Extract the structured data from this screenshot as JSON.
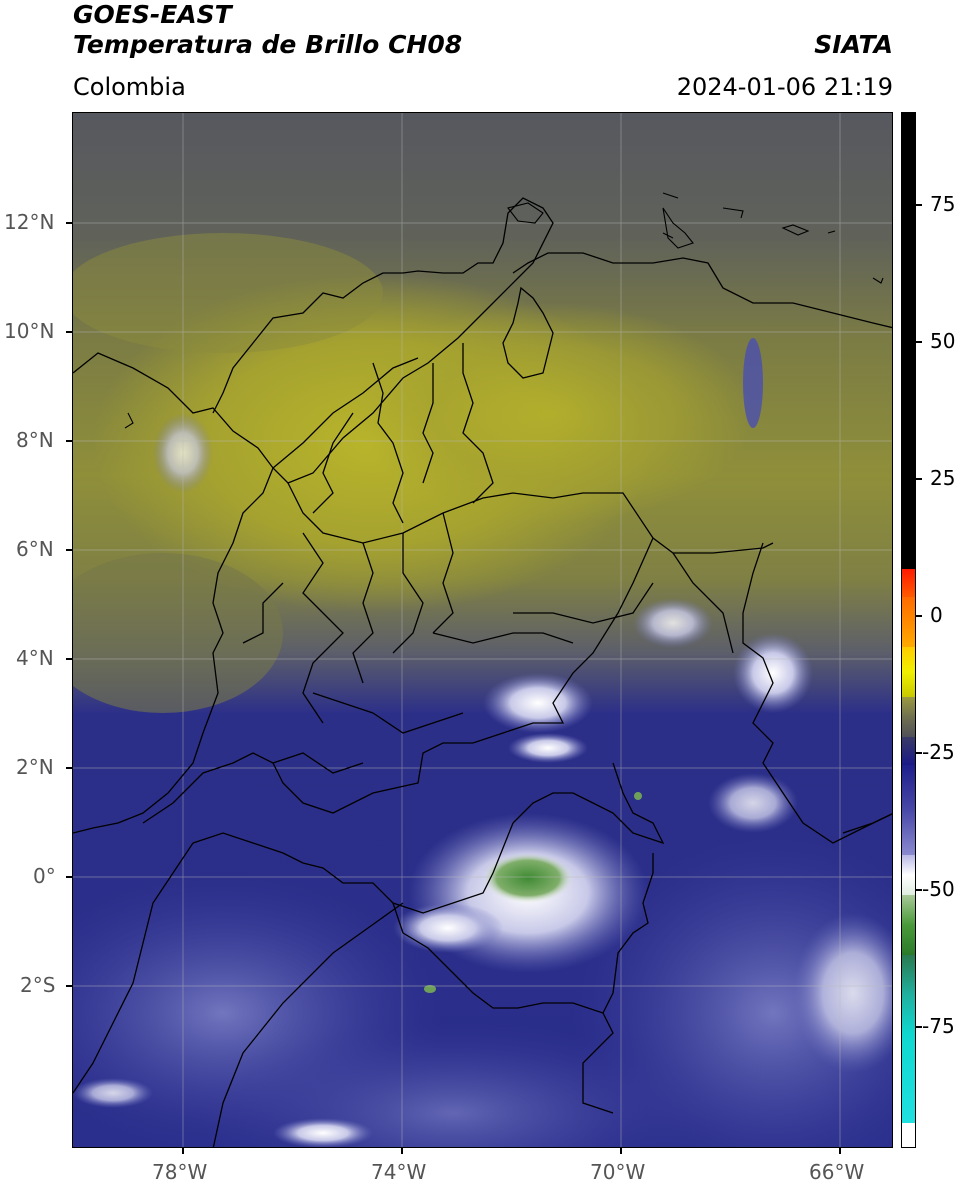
{
  "header": {
    "line1": "GOES-EAST",
    "line2": "Temperatura de Brillo CH08",
    "brand": "SIATA",
    "region": "Colombia",
    "datetime": "2024-01-06 21:19"
  },
  "axes": {
    "lat_labels": [
      "12°N",
      "10°N",
      "8°N",
      "6°N",
      "4°N",
      "2°N",
      "0°",
      "2°S"
    ],
    "lon_labels": [
      "78°W",
      "74°W",
      "70°W",
      "66°W"
    ]
  },
  "colorbar": {
    "labels": [
      "75",
      "50",
      "25",
      "0",
      "-25",
      "-50",
      "-75"
    ],
    "colors": {
      "hot": "#000000",
      "red": "#ff2200",
      "orange": "#ff9900",
      "yellow": "#e6e600",
      "olive": "#8a8a3a",
      "grey": "#555560",
      "navy": "#1a1a8a",
      "blue": "#3a3aa0",
      "lavender": "#a0a0d8",
      "white": "#ffffff",
      "green": "#3a8a2a",
      "cyan": "#20d0c8"
    }
  },
  "map": {
    "colors": {
      "dark_gray_top": "#5a5d66",
      "olive": "#8d8e3c",
      "olive_dark": "#6e7048",
      "yellow": "#b0ad2c",
      "navy": "#23268a",
      "blue": "#33379a",
      "blue_light": "#5a5fb0",
      "white_cloud": "#e8e8f4",
      "green_core": "#4f8f3c"
    }
  }
}
